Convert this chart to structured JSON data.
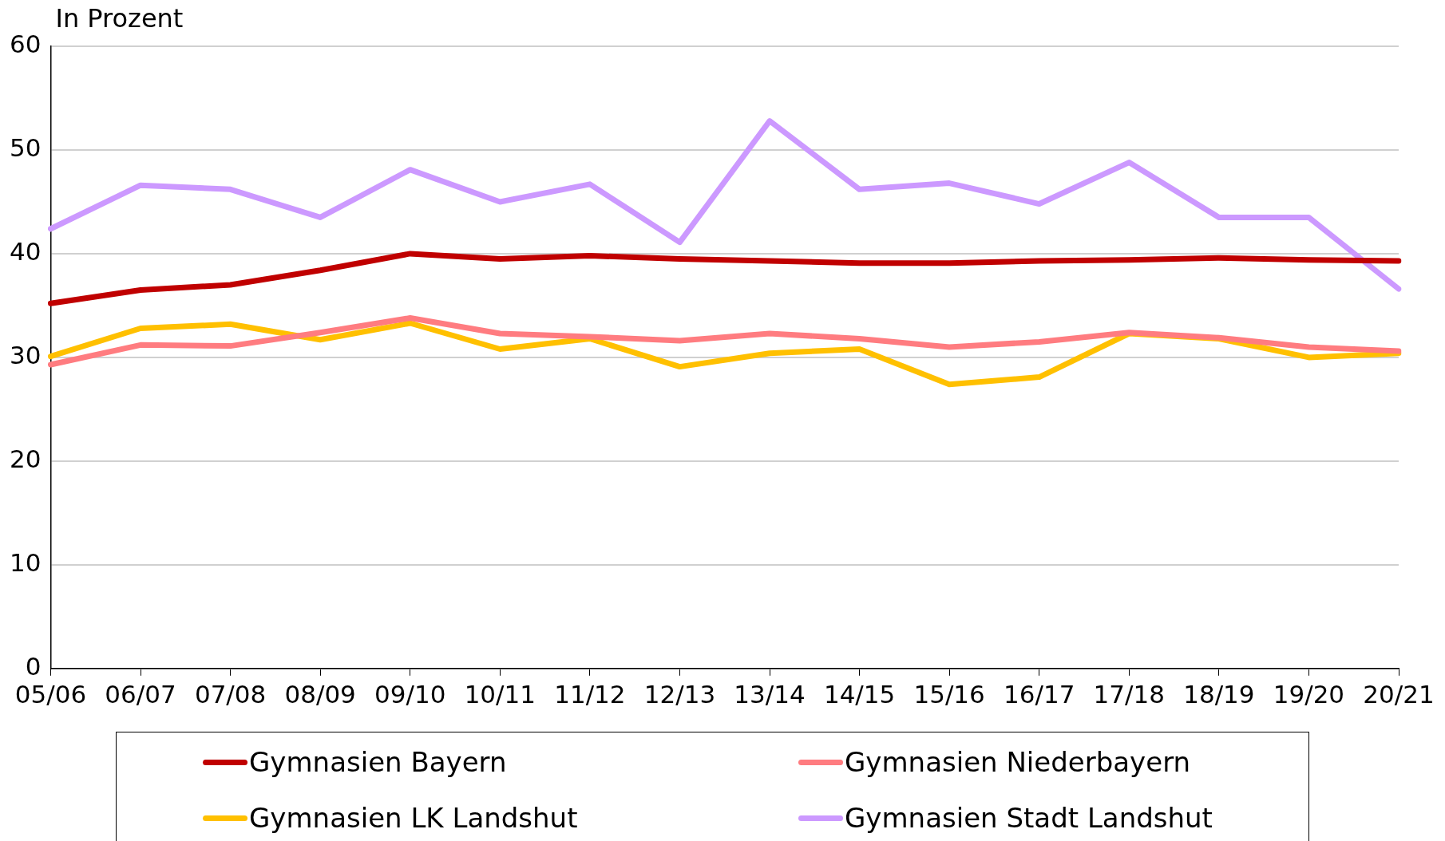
{
  "chart_data": {
    "type": "line",
    "ylabel": "In Prozent",
    "categories": [
      "05/06",
      "06/07",
      "07/08",
      "08/09",
      "09/10",
      "10/11",
      "11/12",
      "12/13",
      "13/14",
      "14/15",
      "15/16",
      "16/17",
      "17/18",
      "18/19",
      "19/20",
      "20/21"
    ],
    "series": [
      {
        "name": "Gymnasien Bayern",
        "color": "#c00000",
        "values": [
          35.2,
          36.5,
          37.0,
          38.4,
          40.0,
          39.5,
          39.8,
          39.5,
          39.3,
          39.1,
          39.1,
          39.3,
          39.4,
          39.6,
          39.4,
          39.3
        ]
      },
      {
        "name": "Gymnasien Niederbayern",
        "color": "#ff7c80",
        "values": [
          29.3,
          31.2,
          31.1,
          32.4,
          33.8,
          32.3,
          32.0,
          31.6,
          32.3,
          31.8,
          31.0,
          31.5,
          32.4,
          31.9,
          31.0,
          30.6
        ]
      },
      {
        "name": "Gymnasien LK Landshut",
        "color": "#ffc000",
        "values": [
          30.1,
          32.8,
          33.2,
          31.7,
          33.3,
          30.8,
          31.8,
          29.1,
          30.4,
          30.8,
          27.4,
          28.1,
          32.3,
          31.8,
          30.0,
          30.4
        ]
      },
      {
        "name": "Gymnasien Stadt Landshut",
        "color": "#cc99ff",
        "values": [
          42.4,
          46.6,
          46.2,
          43.5,
          48.1,
          45.0,
          46.7,
          41.1,
          52.8,
          46.2,
          46.8,
          44.8,
          48.8,
          43.5,
          43.5,
          36.6
        ]
      }
    ],
    "ylim": [
      0,
      60
    ],
    "yticks": [
      0,
      10,
      20,
      30,
      40,
      50,
      60
    ],
    "grid": "y",
    "legend": "bottom",
    "marker": "none",
    "line_style": "solid"
  }
}
